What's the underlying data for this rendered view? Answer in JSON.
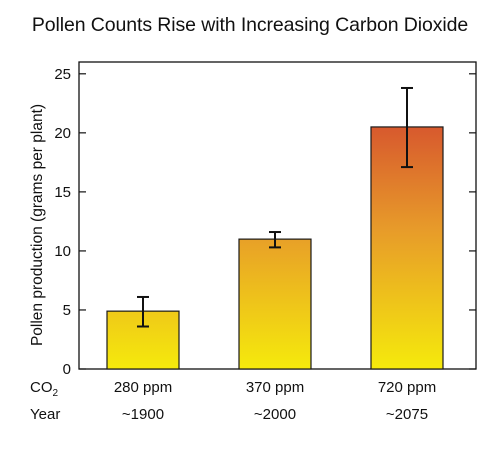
{
  "chart_data": {
    "type": "bar",
    "title": "Pollen Counts Rise with Increasing Carbon Dioxide",
    "ylabel": "Pollen production (grams per plant)",
    "ylim": [
      0,
      26
    ],
    "yticks": [
      "0",
      "5",
      "10",
      "15",
      "20",
      "25"
    ],
    "ytick_values": [
      0,
      5,
      10,
      15,
      20,
      25
    ],
    "row_labels": {
      "co2_prefix": "CO",
      "co2_subscript": "2",
      "year": "Year"
    },
    "categories": [
      "280 ppm",
      "370 ppm",
      "720 ppm"
    ],
    "years": [
      "~1900",
      "~2000",
      "~2075"
    ],
    "values": [
      4.9,
      11.0,
      20.5
    ],
    "error_low": [
      3.6,
      10.3,
      17.1
    ],
    "error_high": [
      6.1,
      11.6,
      23.8
    ],
    "colors": {
      "fill_low": "#f5ea0c",
      "fill_mid": "#e79a2a",
      "fill_high": "#cc2b30",
      "bar_edge": "#1a1a1a"
    },
    "grid": false
  }
}
